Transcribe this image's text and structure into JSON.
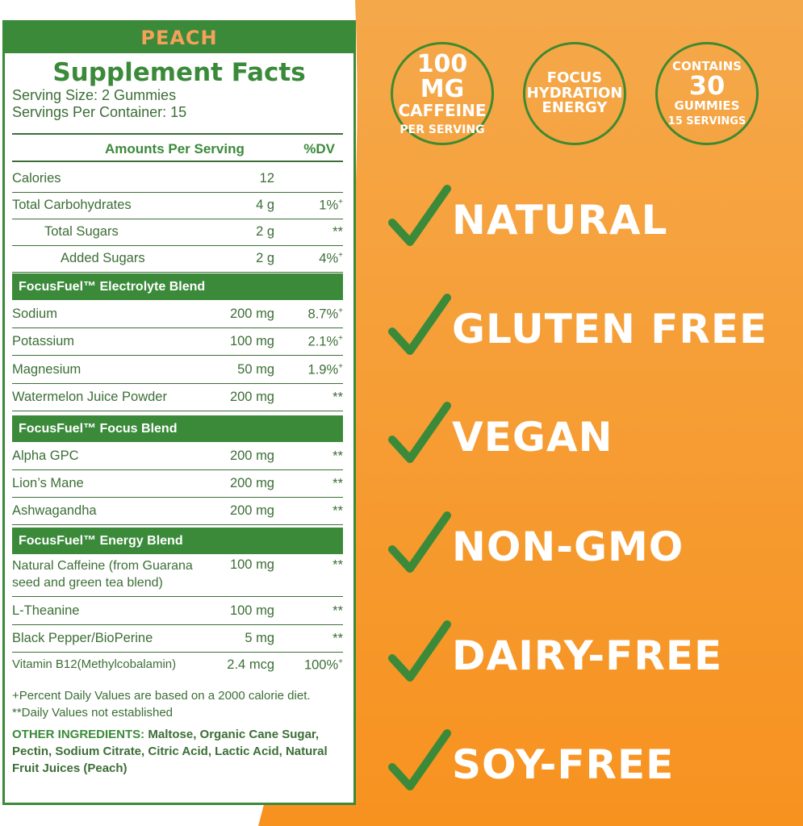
{
  "label": {
    "flavor": "PEACH",
    "title": "Supplement Facts",
    "serving_size": "Serving Size: 2 Gummies",
    "servings_per_container": "Servings Per Container: 15",
    "header_amount": "Amounts Per Serving",
    "header_dv": "%DV",
    "rows_basic": [
      {
        "name": "Calories",
        "amount": "12",
        "dv": ""
      },
      {
        "name": "Total Carbohydrates",
        "amount": "4 g",
        "dv": "1%",
        "sup": "+"
      },
      {
        "name": "Total Sugars",
        "amount": "2 g",
        "dv": "**"
      },
      {
        "name": "Added Sugars",
        "amount": "2 g",
        "dv": "4%",
        "sup": "+"
      }
    ],
    "blend1": "FocusFuel™ Electrolyte Blend",
    "rows_blend1": [
      {
        "name": "Sodium",
        "amount": "200 mg",
        "dv": "8.7%",
        "sup": "+"
      },
      {
        "name": "Potassium",
        "amount": "100 mg",
        "dv": "2.1%",
        "sup": "+"
      },
      {
        "name": "Magnesium",
        "amount": "50 mg",
        "dv": "1.9%",
        "sup": "+"
      },
      {
        "name": "Watermelon Juice Powder",
        "amount": "200 mg",
        "dv": "**"
      }
    ],
    "blend2": "FocusFuel™ Focus Blend",
    "rows_blend2": [
      {
        "name": "Alpha GPC",
        "amount": "200 mg",
        "dv": "**"
      },
      {
        "name": "Lion’s Mane",
        "amount": "200 mg",
        "dv": "**"
      },
      {
        "name": "Ashwagandha",
        "amount": "200 mg",
        "dv": "**"
      }
    ],
    "blend3": "FocusFuel™ Energy Blend",
    "rows_blend3": [
      {
        "name": "Natural Caffeine (from Guarana seed and green tea blend)",
        "amount": "100 mg",
        "dv": "**"
      },
      {
        "name": "L-Theanine",
        "amount": "100 mg",
        "dv": "**"
      },
      {
        "name": "Black Pepper/BioPerine",
        "amount": "5 mg",
        "dv": "**"
      },
      {
        "name": "Vitamin B12(Methylcobalamin)",
        "amount": "2.4 mcg",
        "dv": "100%",
        "sup": "+"
      }
    ],
    "footnote1": "+Percent Daily Values are based on a 2000 calorie diet.",
    "footnote2": "**Daily Values not established",
    "other_label": "OTHER INGREDIENTS:",
    "other_text": " Maltose, Organic Cane Sugar, Pectin, Sodium Citrate, Citric Acid, Lactic Acid, Natural Fruit Juices (Peach)"
  },
  "badges": [
    {
      "lines": [
        "100 MG",
        "CAFFEINE",
        "PER SERVING"
      ]
    },
    {
      "lines": [
        "FOCUS",
        "HYDRATION",
        "ENERGY"
      ]
    },
    {
      "lines": [
        "CONTAINS",
        "30",
        "GUMMIES",
        "15 SERVINGS"
      ]
    }
  ],
  "features": [
    "NATURAL",
    "GLUTEN FREE",
    "VEGAN",
    "NON-GMO",
    "DAIRY-FREE",
    "SOY-FREE"
  ],
  "colors": {
    "green": "#3b8a3a",
    "orange_top": "#f5a84a",
    "orange_bottom": "#f7921f"
  }
}
